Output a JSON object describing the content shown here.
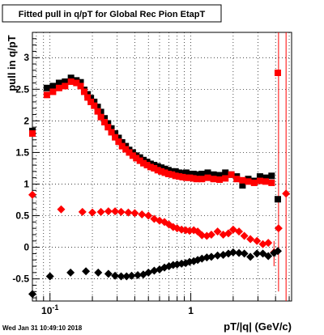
{
  "chart_data": {
    "type": "scatter",
    "title": "Fitted pull in q/pT for Global Rec Pion EtapT",
    "xlabel": "pT/|q| (GeV/c)",
    "ylabel": "pull in q/pT",
    "x_scale": "log",
    "xlim": [
      0.075,
      5.2
    ],
    "ylim": [
      -0.85,
      3.4
    ],
    "grid": true,
    "x_major_ticks": [
      {
        "value": 0.1,
        "base": "10",
        "exp": "-1"
      },
      {
        "value": 1,
        "label": "1"
      }
    ],
    "y_ticks": [
      {
        "value": -0.5,
        "label": "-0.5"
      },
      {
        "value": 0,
        "label": "0"
      },
      {
        "value": 0.5,
        "label": "0.5"
      },
      {
        "value": 1,
        "label": "1"
      },
      {
        "value": 1.5,
        "label": "1.5"
      },
      {
        "value": 2,
        "label": "2"
      },
      {
        "value": 2.5,
        "label": "2.5"
      },
      {
        "value": 3,
        "label": "3"
      }
    ],
    "series": [
      {
        "marker": "square",
        "color": "#000000",
        "points": [
          [
            0.075,
            1.84
          ],
          [
            0.095,
            2.52
          ],
          [
            0.105,
            2.55
          ],
          [
            0.116,
            2.6
          ],
          [
            0.128,
            2.62
          ],
          [
            0.141,
            2.68
          ],
          [
            0.154,
            2.64
          ],
          [
            0.165,
            2.61
          ],
          [
            0.175,
            2.49
          ],
          [
            0.185,
            2.42
          ],
          [
            0.195,
            2.36
          ],
          [
            0.206,
            2.3
          ],
          [
            0.218,
            2.22
          ],
          [
            0.23,
            2.14
          ],
          [
            0.244,
            2.04
          ],
          [
            0.258,
            1.96
          ],
          [
            0.273,
            1.88
          ],
          [
            0.29,
            1.8
          ],
          [
            0.307,
            1.73
          ],
          [
            0.325,
            1.66
          ],
          [
            0.345,
            1.6
          ],
          [
            0.365,
            1.54
          ],
          [
            0.387,
            1.5
          ],
          [
            0.41,
            1.45
          ],
          [
            0.435,
            1.42
          ],
          [
            0.461,
            1.38
          ],
          [
            0.489,
            1.35
          ],
          [
            0.518,
            1.32
          ],
          [
            0.549,
            1.3
          ],
          [
            0.582,
            1.28
          ],
          [
            0.617,
            1.26
          ],
          [
            0.654,
            1.24
          ],
          [
            0.693,
            1.22
          ],
          [
            0.735,
            1.2
          ],
          [
            0.779,
            1.2
          ],
          [
            0.826,
            1.18
          ],
          [
            0.875,
            1.17
          ],
          [
            0.928,
            1.18
          ],
          [
            0.984,
            1.16
          ],
          [
            1.043,
            1.16
          ],
          [
            1.1,
            1.15
          ],
          [
            1.2,
            1.16
          ],
          [
            1.32,
            1.18
          ],
          [
            1.45,
            1.15
          ],
          [
            1.6,
            1.14
          ],
          [
            1.76,
            1.18
          ],
          [
            1.94,
            1.15
          ],
          [
            2.12,
            1.12
          ],
          [
            2.33,
            0.98
          ],
          [
            2.56,
            1.08
          ],
          [
            2.82,
            1.05
          ],
          [
            3.1,
            1.12
          ],
          [
            3.4,
            1.1
          ],
          [
            3.75,
            1.13
          ],
          [
            4.15,
            0.76
          ]
        ]
      },
      {
        "marker": "square",
        "color": "#ff0000",
        "points": [
          [
            0.075,
            1.8
          ],
          [
            0.095,
            2.41
          ],
          [
            0.105,
            2.46
          ],
          [
            0.116,
            2.52
          ],
          [
            0.128,
            2.55
          ],
          [
            0.141,
            2.62
          ],
          [
            0.154,
            2.6
          ],
          [
            0.165,
            2.55
          ],
          [
            0.175,
            2.46
          ],
          [
            0.185,
            2.37
          ],
          [
            0.195,
            2.3
          ],
          [
            0.206,
            2.24
          ],
          [
            0.218,
            2.15
          ],
          [
            0.23,
            2.06
          ],
          [
            0.244,
            1.98
          ],
          [
            0.258,
            1.9
          ],
          [
            0.273,
            1.82
          ],
          [
            0.29,
            1.74
          ],
          [
            0.307,
            1.67
          ],
          [
            0.325,
            1.6
          ],
          [
            0.345,
            1.55
          ],
          [
            0.365,
            1.5
          ],
          [
            0.387,
            1.45
          ],
          [
            0.41,
            1.41
          ],
          [
            0.435,
            1.37
          ],
          [
            0.461,
            1.33
          ],
          [
            0.489,
            1.3
          ],
          [
            0.518,
            1.27
          ],
          [
            0.549,
            1.25
          ],
          [
            0.582,
            1.22
          ],
          [
            0.617,
            1.2
          ],
          [
            0.654,
            1.18
          ],
          [
            0.693,
            1.16
          ],
          [
            0.735,
            1.15
          ],
          [
            0.779,
            1.13
          ],
          [
            0.826,
            1.12
          ],
          [
            0.875,
            1.11
          ],
          [
            0.928,
            1.1
          ],
          [
            0.984,
            1.1
          ],
          [
            1.043,
            1.09
          ],
          [
            1.1,
            1.08
          ],
          [
            1.2,
            1.08
          ],
          [
            1.32,
            1.1
          ],
          [
            1.45,
            1.08
          ],
          [
            1.6,
            1.07
          ],
          [
            1.76,
            1.09
          ],
          [
            1.94,
            1.15
          ],
          [
            2.12,
            1.08
          ],
          [
            2.33,
            1.06
          ],
          [
            2.56,
            1.04
          ],
          [
            2.82,
            1.02
          ],
          [
            3.1,
            1.05
          ],
          [
            3.4,
            1.04
          ],
          [
            3.75,
            1.02
          ],
          [
            4.15,
            2.76
          ]
        ]
      },
      {
        "marker": "diamond",
        "color": "#ff0000",
        "points": [
          [
            0.075,
            0.83
          ],
          [
            0.12,
            0.6
          ],
          [
            0.17,
            0.56
          ],
          [
            0.2,
            0.55
          ],
          [
            0.23,
            0.56
          ],
          [
            0.26,
            0.57
          ],
          [
            0.29,
            0.57
          ],
          [
            0.32,
            0.56
          ],
          [
            0.36,
            0.55
          ],
          [
            0.4,
            0.54
          ],
          [
            0.45,
            0.52
          ],
          [
            0.5,
            0.5
          ],
          [
            0.55,
            0.45
          ],
          [
            0.6,
            0.42
          ],
          [
            0.65,
            0.4
          ],
          [
            0.7,
            0.36
          ],
          [
            0.75,
            0.32
          ],
          [
            0.8,
            0.3
          ],
          [
            0.86,
            0.28
          ],
          [
            0.92,
            0.27
          ],
          [
            0.98,
            0.26
          ],
          [
            1.05,
            0.27
          ],
          [
            1.12,
            0.25
          ],
          [
            1.2,
            0.19
          ],
          [
            1.3,
            0.18
          ],
          [
            1.4,
            0.2
          ],
          [
            1.55,
            0.25
          ],
          [
            1.7,
            0.2
          ],
          [
            1.85,
            0.22
          ],
          [
            2.0,
            0.28
          ],
          [
            2.2,
            0.25
          ],
          [
            2.4,
            0.18
          ],
          [
            2.65,
            0.13
          ],
          [
            2.95,
            0.1
          ],
          [
            3.25,
            0.05
          ],
          [
            3.55,
            0.07
          ],
          [
            3.9,
            -0.08
          ],
          [
            4.2,
            0.3
          ],
          [
            4.75,
            0.85
          ]
        ]
      },
      {
        "marker": "diamond",
        "color": "#000000",
        "points": [
          [
            0.075,
            -0.74
          ],
          [
            0.1,
            -0.46
          ],
          [
            0.14,
            -0.4
          ],
          [
            0.18,
            -0.38
          ],
          [
            0.22,
            -0.4
          ],
          [
            0.26,
            -0.42
          ],
          [
            0.29,
            -0.45
          ],
          [
            0.32,
            -0.46
          ],
          [
            0.35,
            -0.46
          ],
          [
            0.38,
            -0.45
          ],
          [
            0.42,
            -0.44
          ],
          [
            0.46,
            -0.43
          ],
          [
            0.5,
            -0.4
          ],
          [
            0.55,
            -0.37
          ],
          [
            0.6,
            -0.35
          ],
          [
            0.65,
            -0.32
          ],
          [
            0.7,
            -0.3
          ],
          [
            0.75,
            -0.28
          ],
          [
            0.8,
            -0.27
          ],
          [
            0.86,
            -0.26
          ],
          [
            0.92,
            -0.25
          ],
          [
            0.98,
            -0.23
          ],
          [
            1.05,
            -0.22
          ],
          [
            1.12,
            -0.2
          ],
          [
            1.2,
            -0.18
          ],
          [
            1.3,
            -0.16
          ],
          [
            1.4,
            -0.15
          ],
          [
            1.55,
            -0.13
          ],
          [
            1.7,
            -0.12
          ],
          [
            1.85,
            -0.1
          ],
          [
            2.0,
            -0.08
          ],
          [
            2.2,
            -0.09
          ],
          [
            2.4,
            -0.1
          ],
          [
            2.65,
            -0.15
          ],
          [
            2.95,
            -0.1
          ],
          [
            3.25,
            -0.1
          ],
          [
            3.55,
            -0.14
          ],
          [
            3.9,
            -0.09
          ],
          [
            4.15,
            -0.06
          ]
        ]
      }
    ],
    "error_bars": [
      {
        "x": 3.9,
        "y_low": -0.3,
        "y_high": 0.1,
        "color": "#ff0000"
      },
      {
        "x": 4.2,
        "y_low": -0.7,
        "y_high": 3.4,
        "color": "#ff0000"
      },
      {
        "x": 4.75,
        "y_low": -0.85,
        "y_high": 3.4,
        "color": "#ff0000"
      }
    ]
  },
  "footer": {
    "timestamp": "Wed Jan 31 10:49:10 2018"
  }
}
